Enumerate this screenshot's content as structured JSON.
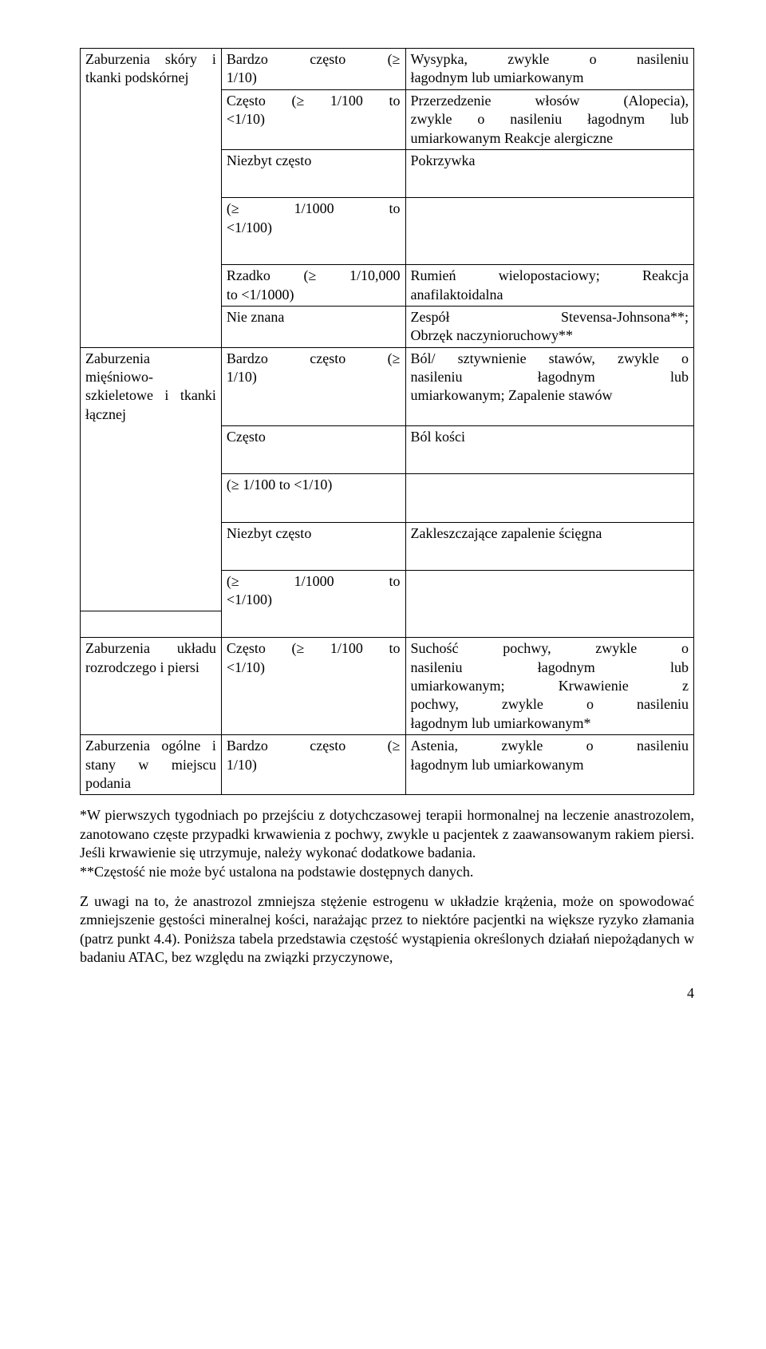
{
  "rows": {
    "r1c1": "Zaburzenia skóry i tkanki podskórnej",
    "r1c2": "Bardzo często (≥ 1/10)",
    "r1c3": "Wysypka, zwykle o nasileniu łagodnym lub umiarkowanym",
    "r2c2": "Często (≥ 1/100 to <1/10)",
    "r2c3": "Przerzedzenie włosów (Alopecia), zwykle o nasileniu łagodnym lub umiarkowanym Reakcje alergiczne",
    "r3c2": "Niezbyt często",
    "r3c3": "Pokrzywka",
    "r4c2": "(≥ 1/1000 to <1/100)",
    "r5c2": "Rzadko (≥ 1/10,000 to <1/1000)",
    "r5c3": "Rumień wielopostaciowy; Reakcja anafilaktoidalna",
    "r6c2": "Nie znana",
    "r6c3": "Zespół Stevensa-Johnsona**; Obrzęk naczynioruchowy**",
    "r7c1": "Zaburzenia mięśniowo-szkieletowe i tkanki łącznej",
    "r7c2": "Bardzo często (≥ 1/10)",
    "r7c3": "Ból/ sztywnienie stawów, zwykle o nasileniu łagodnym lub umiarkowanym; Zapalenie stawów",
    "r8c2": "Często",
    "r8c3": "Ból kości",
    "r9c2": "(≥ 1/100 to <1/10)",
    "r10c2": "Niezbyt często",
    "r10c3": "Zakleszczające zapalenie ścięgna",
    "r11c2": "(≥ 1/1000 to <1/100)",
    "r12c1": "Zaburzenia układu rozrodczego i piersi",
    "r12c2": "Często (≥ 1/100 to <1/10)",
    "r12c3": "Suchość pochwy, zwykle o nasileniu łagodnym lub umiarkowanym; Krwawienie z pochwy, zwykle o nasileniu łagodnym lub umiarkowanym*",
    "r13c1": "Zaburzenia ogólne i stany w miejscu podania",
    "r13c2": "Bardzo często (≥ 1/10)",
    "r13c3": "Astenia, zwykle o nasileniu łagodnym lub umiarkowanym"
  },
  "para1": "*W pierwszych tygodniach po przejściu z dotychczasowej terapii hormonalnej na leczenie anastrozolem, zanotowano częste przypadki krwawienia z pochwy, zwykle u pacjentek z zaawansowanym rakiem piersi. Jeśli krwawienie się utrzymuje, należy wykonać dodatkowe badania.",
  "para2": "**Częstość nie może być ustalona na podstawie dostępnych danych.",
  "para3": "Z uwagi na to, że anastrozol zmniejsza stężenie estrogenu w układzie krążenia, może on spowodować zmniejszenie gęstości mineralnej kości, narażając przez to niektóre pacjentki na większe ryzyko złamania (patrz punkt 4.4). Poniższa tabela przedstawia częstość wystąpienia określonych działań niepożądanych w badaniu ATAC, bez względu na związki przyczynowe,",
  "pagenum": "4"
}
